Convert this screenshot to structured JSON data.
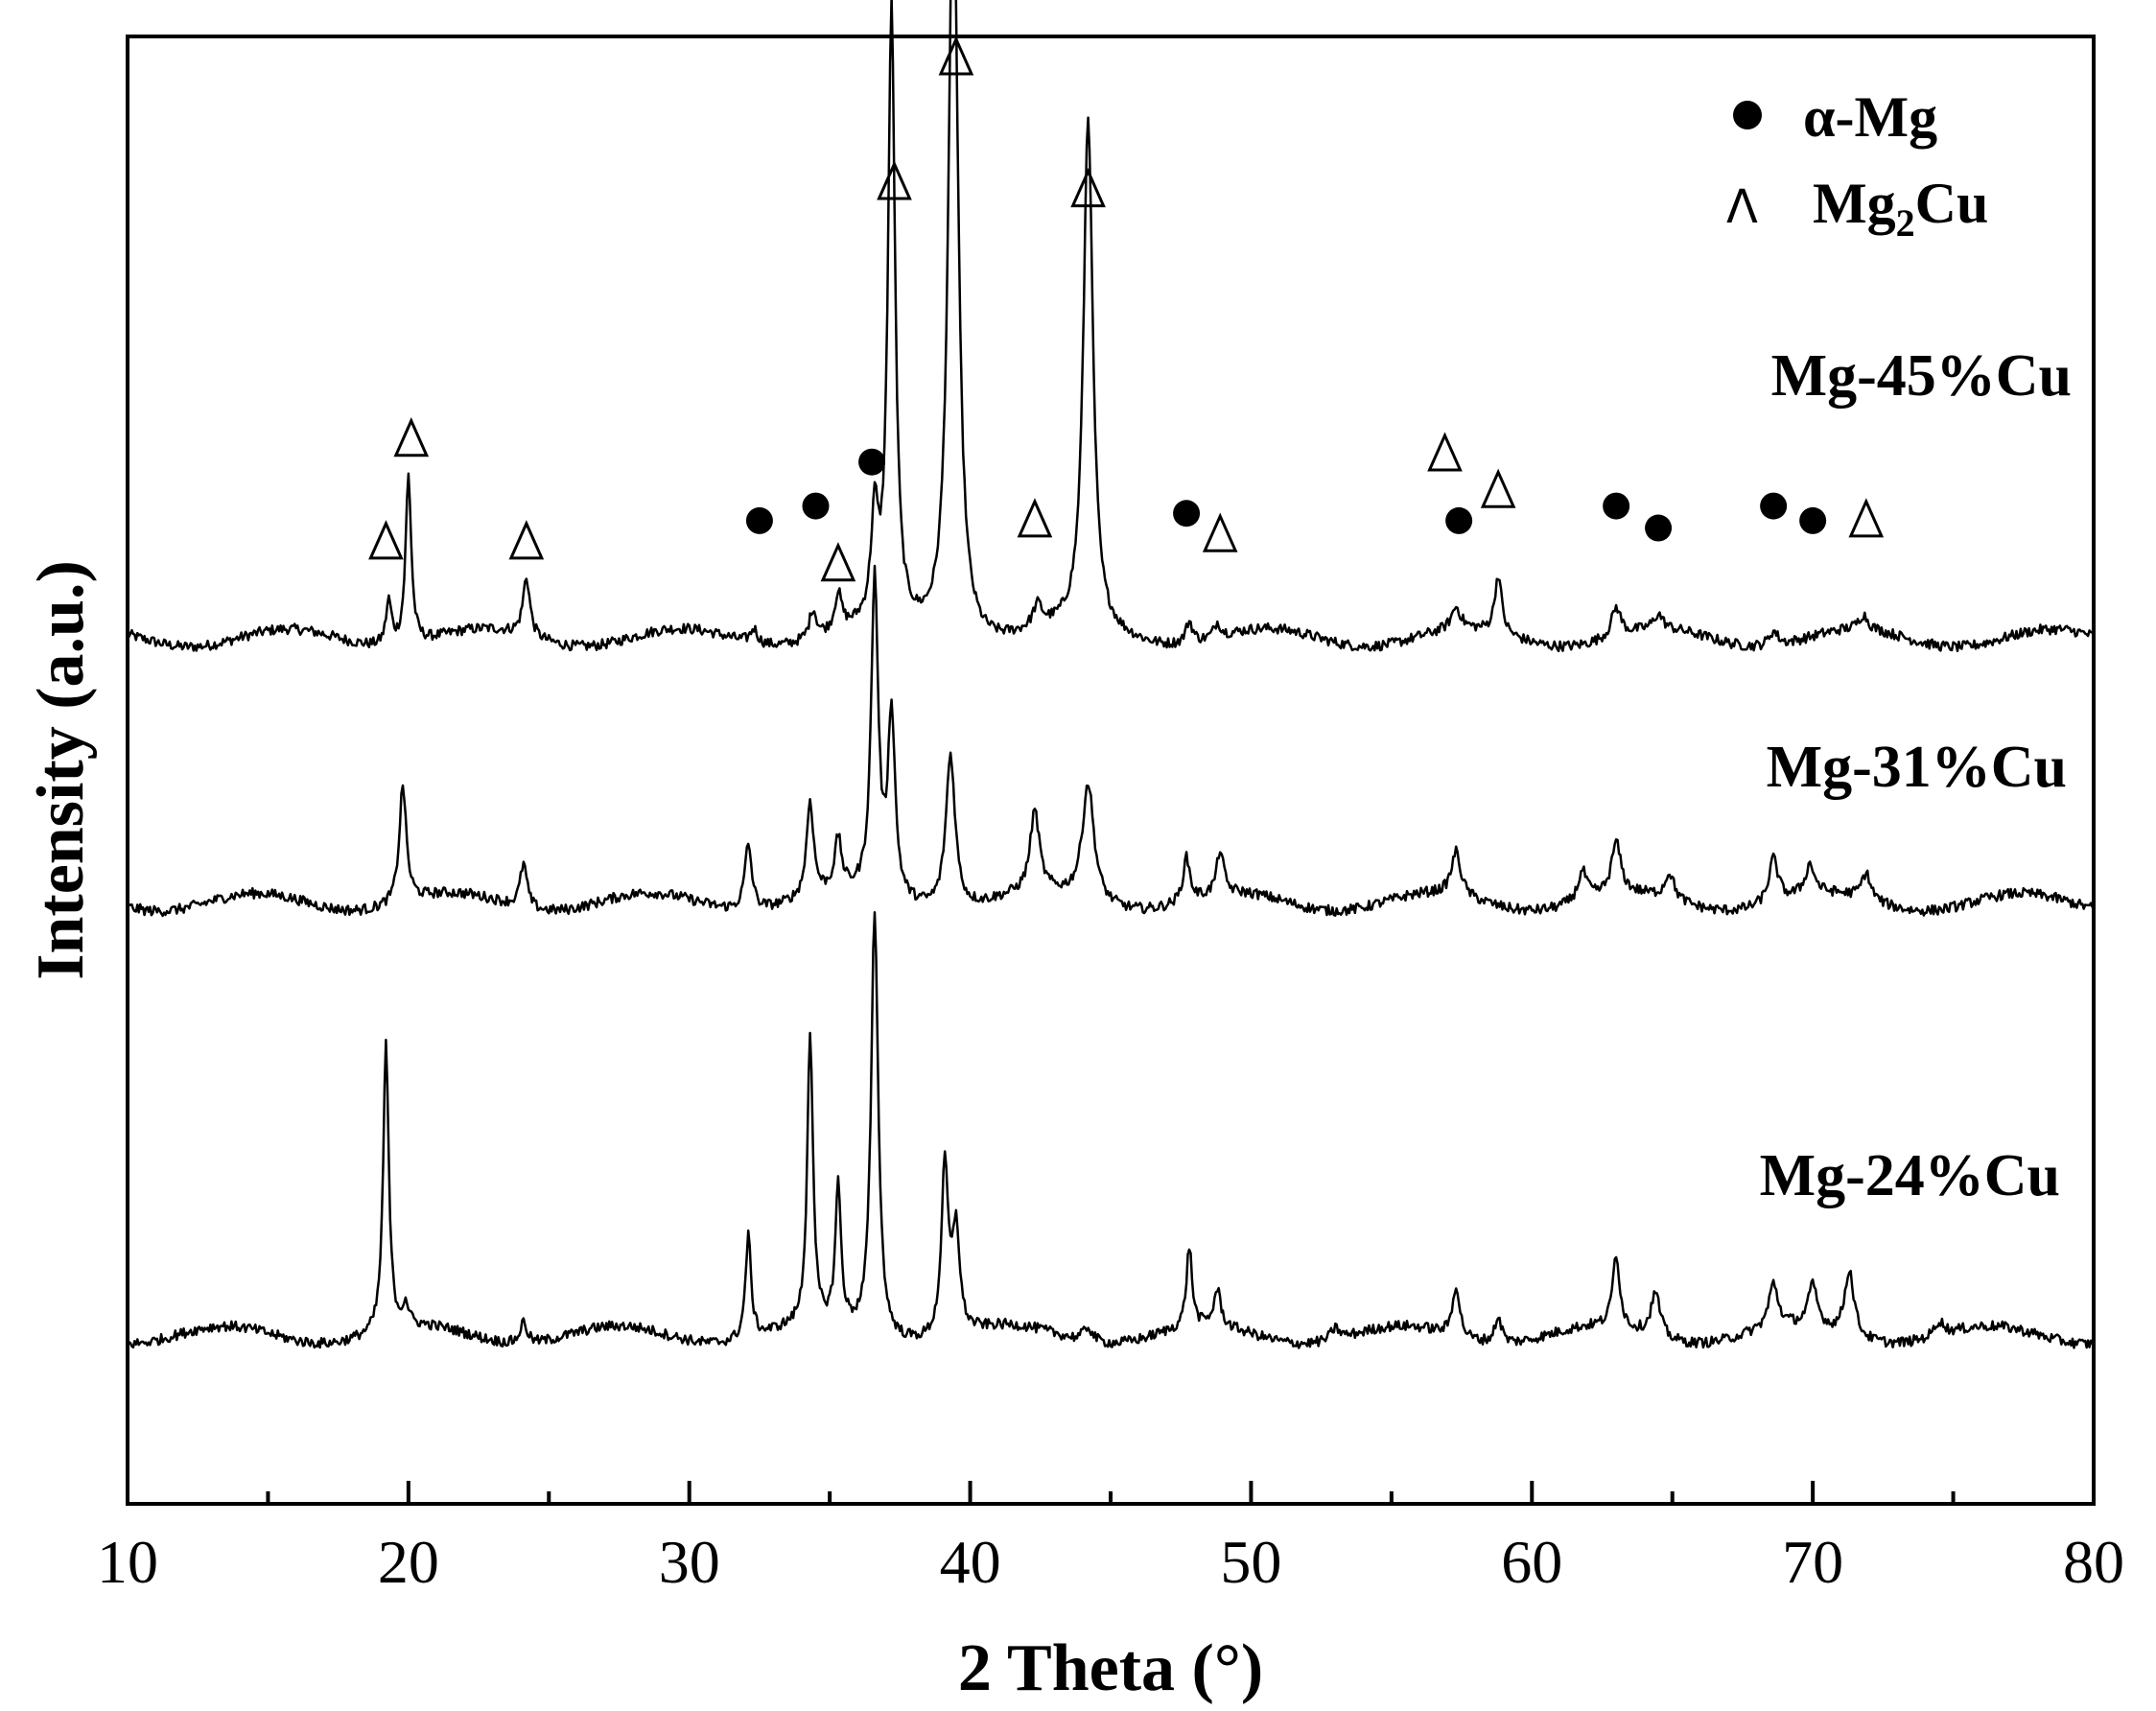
{
  "chart_data": {
    "type": "line",
    "xlabel": "2 Theta (°)",
    "ylabel": "Intensity (a.u.)",
    "xlim": [
      10,
      80
    ],
    "x_ticks": [
      10,
      20,
      30,
      40,
      50,
      60,
      70,
      80
    ],
    "x_minor_ticks": [
      15,
      25,
      35,
      45,
      55,
      65,
      75
    ],
    "y_ticks_shown": false,
    "legend": {
      "placement": "top-right",
      "entries": [
        {
          "symbol": "circle",
          "label_prefix": "α-Mg",
          "label_sub": "",
          "label_suffix": ""
        },
        {
          "symbol": "triangle",
          "label_prefix": "Mg",
          "label_sub": "2",
          "label_suffix": "Cu"
        }
      ]
    },
    "series": [
      {
        "name": "Mg-45%Cu",
        "baseline": 0.59,
        "peaks": [
          {
            "x": 19.3,
            "h": 0.03,
            "w": 0.12
          },
          {
            "x": 20.0,
            "h": 0.115,
            "w": 0.12
          },
          {
            "x": 24.2,
            "h": 0.04,
            "w": 0.15
          },
          {
            "x": 32.3,
            "h": 0.01,
            "w": 0.15
          },
          {
            "x": 34.4,
            "h": 0.02,
            "w": 0.15
          },
          {
            "x": 35.3,
            "h": 0.025,
            "w": 0.15
          },
          {
            "x": 36.6,
            "h": 0.07,
            "w": 0.15
          },
          {
            "x": 37.2,
            "h": 0.42,
            "w": 0.15
          },
          {
            "x": 39.4,
            "h": 0.54,
            "w": 0.2
          },
          {
            "x": 42.4,
            "h": 0.015,
            "w": 0.2
          },
          {
            "x": 44.2,
            "h": 0.35,
            "w": 0.2
          },
          {
            "x": 47.8,
            "h": 0.015,
            "w": 0.15
          },
          {
            "x": 48.8,
            "h": 0.01,
            "w": 0.15
          },
          {
            "x": 57.3,
            "h": 0.015,
            "w": 0.2
          },
          {
            "x": 58.8,
            "h": 0.04,
            "w": 0.15
          },
          {
            "x": 63.0,
            "h": 0.02,
            "w": 0.2
          },
          {
            "x": 64.5,
            "h": 0.01,
            "w": 0.2
          },
          {
            "x": 68.6,
            "h": 0.01,
            "w": 0.2
          },
          {
            "x": 71.8,
            "h": 0.01,
            "w": 0.2
          }
        ],
        "markers": [
          {
            "x": 19.2,
            "y": 0.655,
            "type": "triangle"
          },
          {
            "x": 20.1,
            "y": 0.725,
            "type": "triangle"
          },
          {
            "x": 24.2,
            "y": 0.655,
            "type": "triangle"
          },
          {
            "x": 32.5,
            "y": 0.67,
            "type": "circle"
          },
          {
            "x": 34.5,
            "y": 0.68,
            "type": "circle"
          },
          {
            "x": 35.3,
            "y": 0.64,
            "type": "triangle"
          },
          {
            "x": 36.5,
            "y": 0.71,
            "type": "circle"
          },
          {
            "x": 37.3,
            "y": 0.9,
            "type": "triangle"
          },
          {
            "x": 39.5,
            "y": 0.985,
            "type": "triangle"
          },
          {
            "x": 42.3,
            "y": 0.67,
            "type": "triangle"
          },
          {
            "x": 44.2,
            "y": 0.895,
            "type": "triangle"
          },
          {
            "x": 47.7,
            "y": 0.675,
            "type": "circle"
          },
          {
            "x": 48.9,
            "y": 0.66,
            "type": "triangle"
          },
          {
            "x": 57.4,
            "y": 0.67,
            "type": "circle"
          },
          {
            "x": 56.9,
            "y": 0.715,
            "type": "triangle"
          },
          {
            "x": 58.8,
            "y": 0.69,
            "type": "triangle"
          },
          {
            "x": 63.0,
            "y": 0.68,
            "type": "circle"
          },
          {
            "x": 64.5,
            "y": 0.665,
            "type": "circle"
          },
          {
            "x": 68.6,
            "y": 0.68,
            "type": "circle"
          },
          {
            "x": 70.0,
            "y": 0.67,
            "type": "circle"
          },
          {
            "x": 71.9,
            "y": 0.67,
            "type": "triangle"
          }
        ]
      },
      {
        "name": "Mg-31%Cu",
        "baseline": 0.41,
        "peaks": [
          {
            "x": 19.8,
            "h": 0.08,
            "w": 0.15
          },
          {
            "x": 24.1,
            "h": 0.03,
            "w": 0.15
          },
          {
            "x": 32.1,
            "h": 0.045,
            "w": 0.15
          },
          {
            "x": 34.3,
            "h": 0.065,
            "w": 0.15
          },
          {
            "x": 35.3,
            "h": 0.035,
            "w": 0.15
          },
          {
            "x": 36.6,
            "h": 0.215,
            "w": 0.15
          },
          {
            "x": 37.2,
            "h": 0.125,
            "w": 0.15
          },
          {
            "x": 39.3,
            "h": 0.105,
            "w": 0.2
          },
          {
            "x": 42.3,
            "h": 0.055,
            "w": 0.2
          },
          {
            "x": 44.2,
            "h": 0.08,
            "w": 0.25
          },
          {
            "x": 47.7,
            "h": 0.03,
            "w": 0.15
          },
          {
            "x": 48.9,
            "h": 0.03,
            "w": 0.15
          },
          {
            "x": 57.3,
            "h": 0.03,
            "w": 0.2
          },
          {
            "x": 61.8,
            "h": 0.02,
            "w": 0.2
          },
          {
            "x": 63.0,
            "h": 0.035,
            "w": 0.2
          },
          {
            "x": 64.9,
            "h": 0.018,
            "w": 0.2
          },
          {
            "x": 68.6,
            "h": 0.03,
            "w": 0.2
          },
          {
            "x": 69.9,
            "h": 0.02,
            "w": 0.2
          },
          {
            "x": 71.9,
            "h": 0.018,
            "w": 0.2
          }
        ],
        "markers": []
      },
      {
        "name": "Mg-24%Cu",
        "baseline": 0.115,
        "peaks": [
          {
            "x": 19.2,
            "h": 0.195,
            "w": 0.12
          },
          {
            "x": 19.9,
            "h": 0.015,
            "w": 0.12
          },
          {
            "x": 24.1,
            "h": 0.015,
            "w": 0.15
          },
          {
            "x": 32.1,
            "h": 0.07,
            "w": 0.12
          },
          {
            "x": 34.3,
            "h": 0.2,
            "w": 0.12
          },
          {
            "x": 35.3,
            "h": 0.095,
            "w": 0.12
          },
          {
            "x": 36.6,
            "h": 0.29,
            "w": 0.15
          },
          {
            "x": 39.1,
            "h": 0.115,
            "w": 0.15
          },
          {
            "x": 39.5,
            "h": 0.07,
            "w": 0.15
          },
          {
            "x": 44.2,
            "h": 0.01,
            "w": 0.2
          },
          {
            "x": 47.8,
            "h": 0.055,
            "w": 0.12
          },
          {
            "x": 48.8,
            "h": 0.025,
            "w": 0.15
          },
          {
            "x": 53.0,
            "h": 0.008,
            "w": 0.2
          },
          {
            "x": 57.3,
            "h": 0.035,
            "w": 0.15
          },
          {
            "x": 58.8,
            "h": 0.018,
            "w": 0.15
          },
          {
            "x": 63.0,
            "h": 0.05,
            "w": 0.15
          },
          {
            "x": 64.4,
            "h": 0.03,
            "w": 0.2
          },
          {
            "x": 68.6,
            "h": 0.03,
            "w": 0.2
          },
          {
            "x": 70.0,
            "h": 0.028,
            "w": 0.2
          },
          {
            "x": 71.3,
            "h": 0.045,
            "w": 0.2
          },
          {
            "x": 74.5,
            "h": 0.01,
            "w": 0.2
          }
        ],
        "markers": []
      }
    ]
  }
}
